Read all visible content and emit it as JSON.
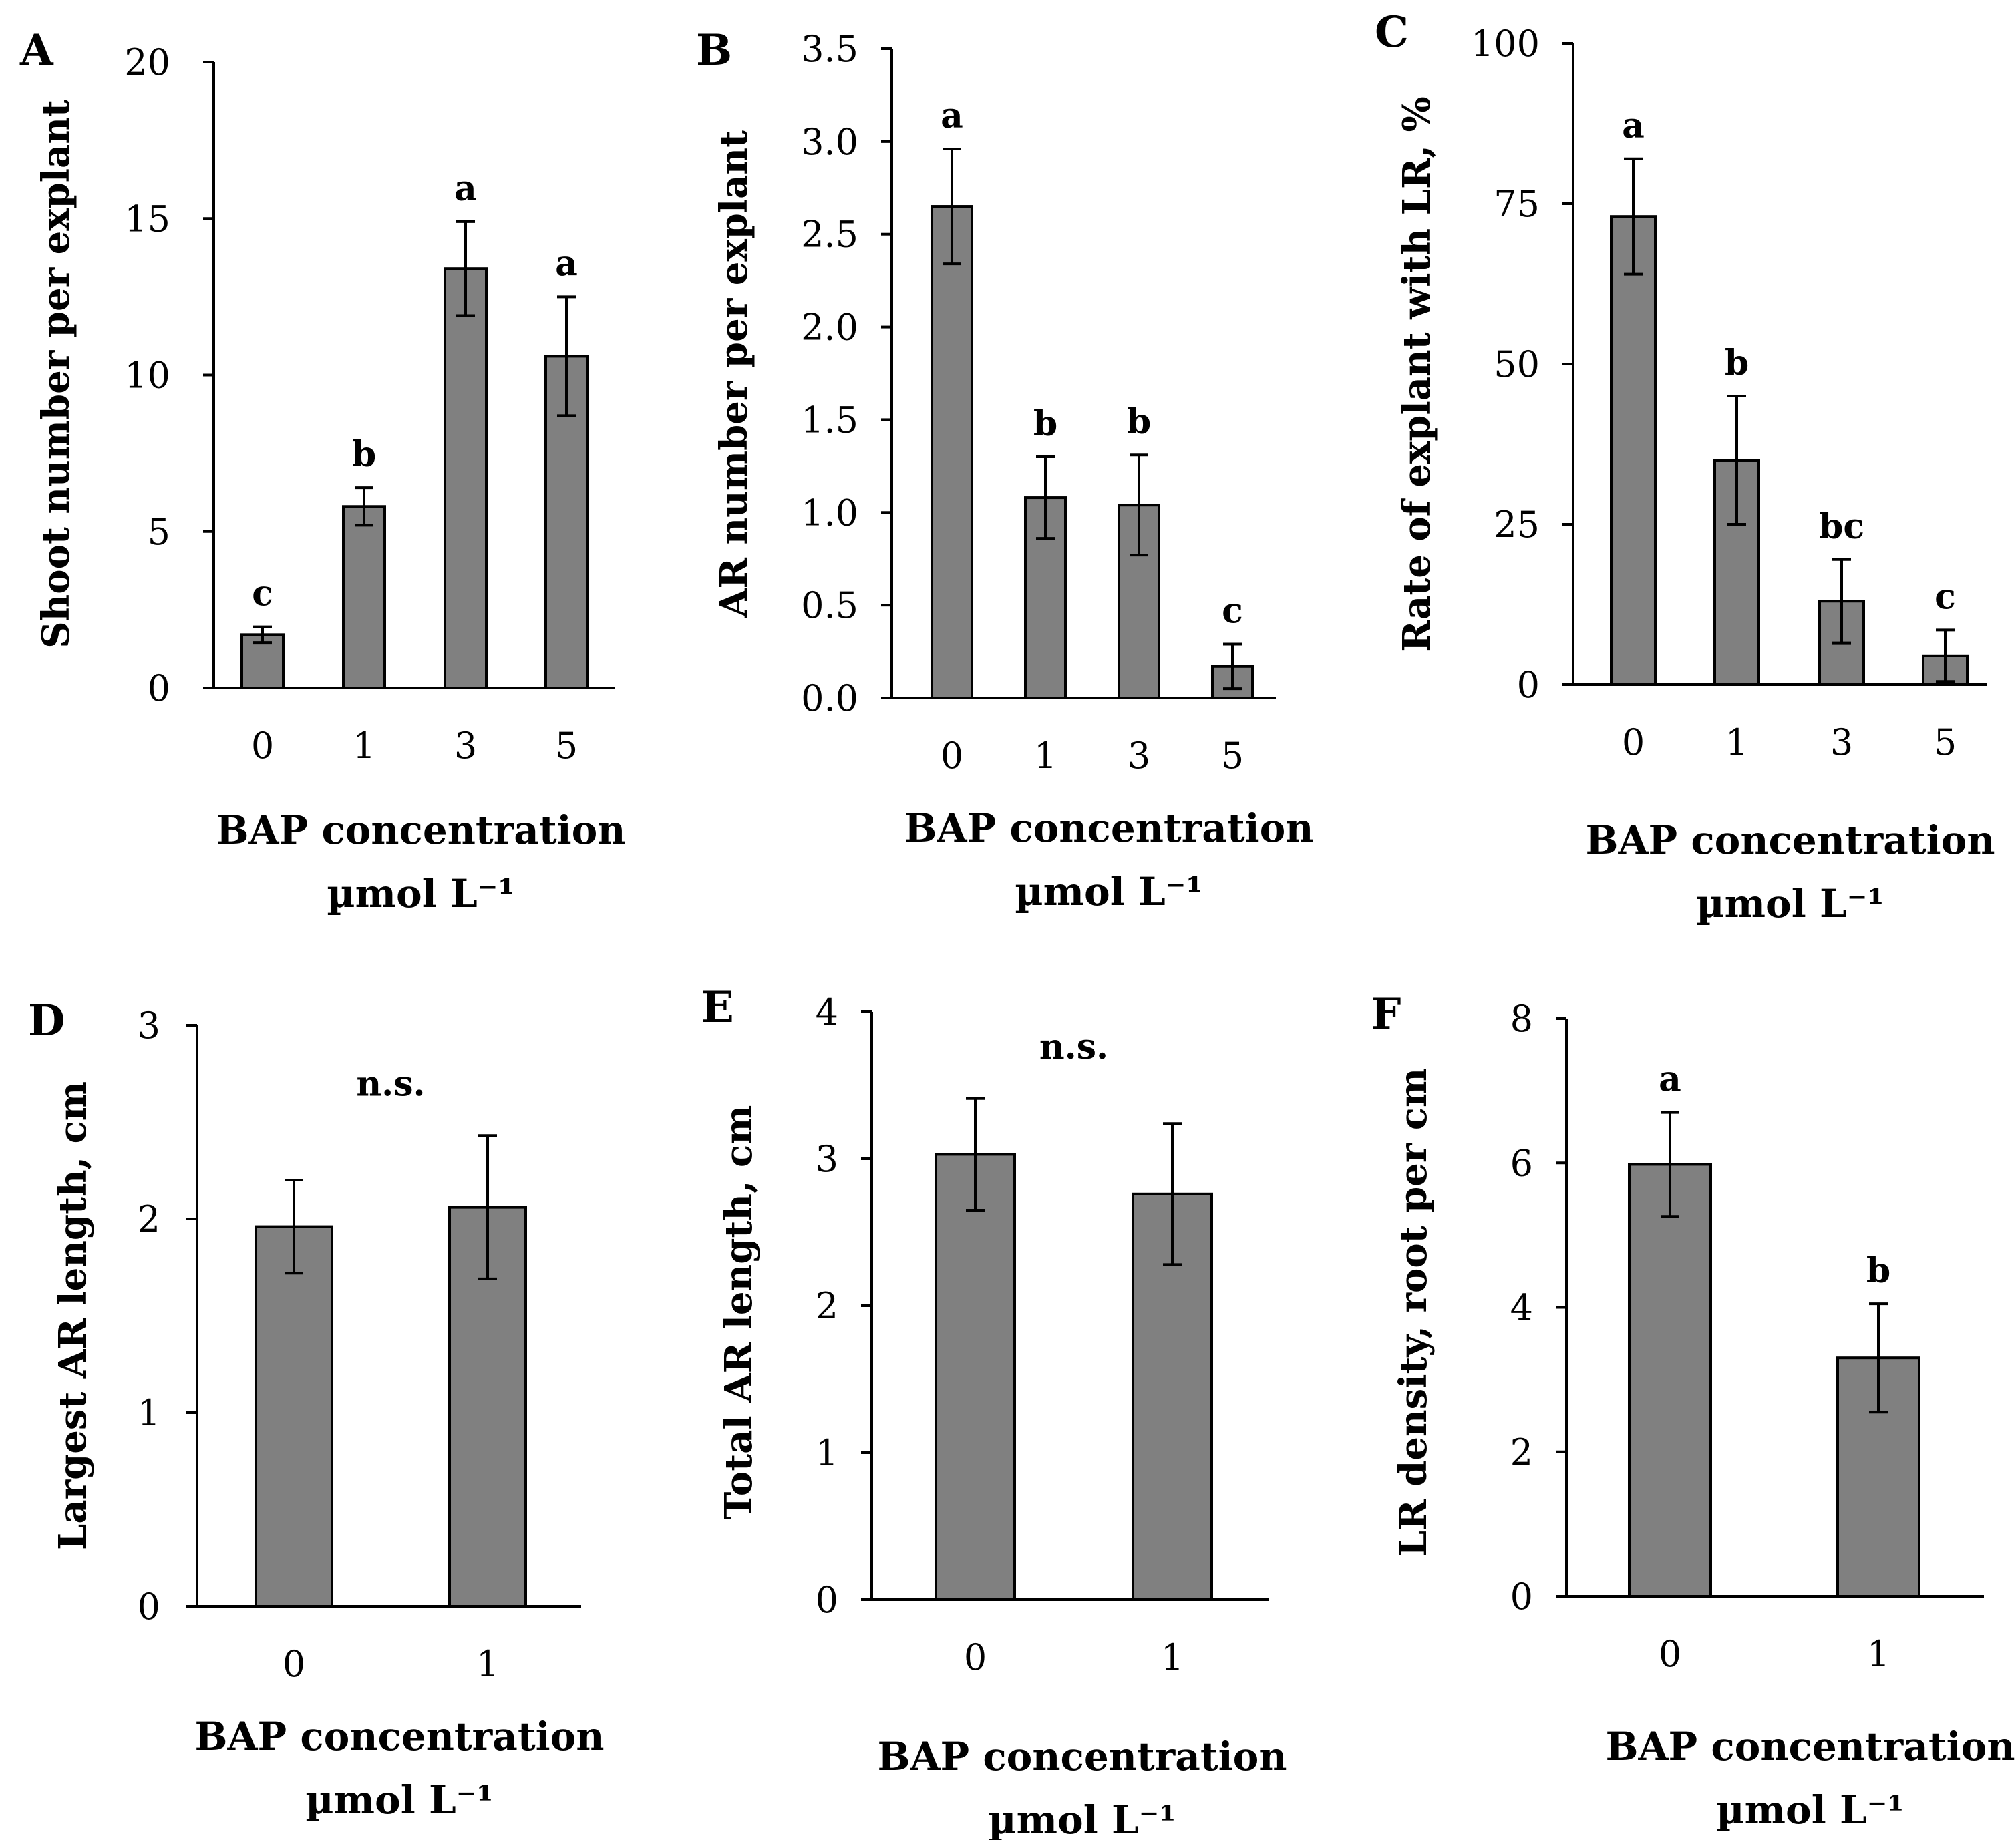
{
  "colors": {
    "bar": "#808080",
    "outline": "#000000",
    "background": "#ffffff"
  },
  "chart_data": [
    {
      "id": "A",
      "type": "bar",
      "panel_label": "A",
      "categories": [
        "0",
        "1",
        "3",
        "5"
      ],
      "values": [
        1.7,
        5.8,
        13.4,
        10.6
      ],
      "errors": [
        0.25,
        0.6,
        1.5,
        1.9
      ],
      "significance": [
        "c",
        "b",
        "a",
        "a"
      ],
      "ylabel": "Shoot number per explant",
      "xlabel_line1": "BAP concentration",
      "xlabel_line2": "µmol L⁻¹",
      "ylim": [
        0,
        20
      ],
      "yticks": [
        0,
        5,
        10,
        15,
        20
      ],
      "ytick_labels": [
        "0",
        "5",
        "10",
        "15",
        "20"
      ]
    },
    {
      "id": "B",
      "type": "bar",
      "panel_label": "B",
      "categories": [
        "0",
        "1",
        "3",
        "5"
      ],
      "values": [
        2.65,
        1.08,
        1.04,
        0.17
      ],
      "errors": [
        0.31,
        0.22,
        0.27,
        0.12
      ],
      "significance": [
        "a",
        "b",
        "b",
        "c"
      ],
      "ylabel": "AR number per explant",
      "xlabel_line1": "BAP concentration",
      "xlabel_line2": "µmol L⁻¹",
      "ylim": [
        0,
        3.5
      ],
      "yticks": [
        0,
        0.5,
        1.0,
        1.5,
        2.0,
        2.5,
        3.0,
        3.5
      ],
      "ytick_labels": [
        "0.0",
        "0.5",
        "1.0",
        "1.5",
        "2.0",
        "2.5",
        "3.0",
        "3.5"
      ]
    },
    {
      "id": "C",
      "type": "bar",
      "panel_label": "C",
      "categories": [
        "0",
        "1",
        "3",
        "5"
      ],
      "values": [
        73,
        35,
        13,
        4.5
      ],
      "errors": [
        9,
        10,
        6.5,
        4
      ],
      "significance": [
        "a",
        "b",
        "bc",
        "c"
      ],
      "ylabel": "Rate of explant with LR, %",
      "xlabel_line1": "BAP concentration",
      "xlabel_line2": "µmol L⁻¹",
      "ylim": [
        0,
        100
      ],
      "yticks": [
        0,
        25,
        50,
        75,
        100
      ],
      "ytick_labels": [
        "0",
        "25",
        "50",
        "75",
        "100"
      ]
    },
    {
      "id": "D",
      "type": "bar",
      "panel_label": "D",
      "categories": [
        "0",
        "1"
      ],
      "values": [
        1.96,
        2.06
      ],
      "errors": [
        0.24,
        0.37
      ],
      "significance": [
        "",
        ""
      ],
      "annotation": "n.s.",
      "ylabel": "Largest AR length, cm",
      "xlabel_line1": "BAP concentration",
      "xlabel_line2": "µmol L⁻¹",
      "ylim": [
        0,
        3
      ],
      "yticks": [
        0,
        1,
        2,
        3
      ],
      "ytick_labels": [
        "0",
        "1",
        "2",
        "3"
      ]
    },
    {
      "id": "E",
      "type": "bar",
      "panel_label": "E",
      "categories": [
        "0",
        "1"
      ],
      "values": [
        3.03,
        2.76
      ],
      "errors": [
        0.38,
        0.48
      ],
      "significance": [
        "",
        ""
      ],
      "annotation": "n.s.",
      "ylabel": "Total AR length, cm",
      "xlabel_line1": "BAP concentration",
      "xlabel_line2": "µmol L⁻¹",
      "ylim": [
        0,
        4
      ],
      "yticks": [
        0,
        1,
        2,
        3,
        4
      ],
      "ytick_labels": [
        "0",
        "1",
        "2",
        "3",
        "4"
      ]
    },
    {
      "id": "F",
      "type": "bar",
      "panel_label": "F",
      "categories": [
        "0",
        "1"
      ],
      "values": [
        5.98,
        3.3
      ],
      "errors": [
        0.72,
        0.75
      ],
      "significance": [
        "a",
        "b"
      ],
      "ylabel": "LR density, root per cm",
      "xlabel_line1": "BAP concentration",
      "xlabel_line2": "µmol L⁻¹",
      "ylim": [
        0,
        8
      ],
      "yticks": [
        0,
        2,
        4,
        6,
        8
      ],
      "ytick_labels": [
        "0",
        "2",
        "4",
        "6",
        "8"
      ]
    }
  ]
}
